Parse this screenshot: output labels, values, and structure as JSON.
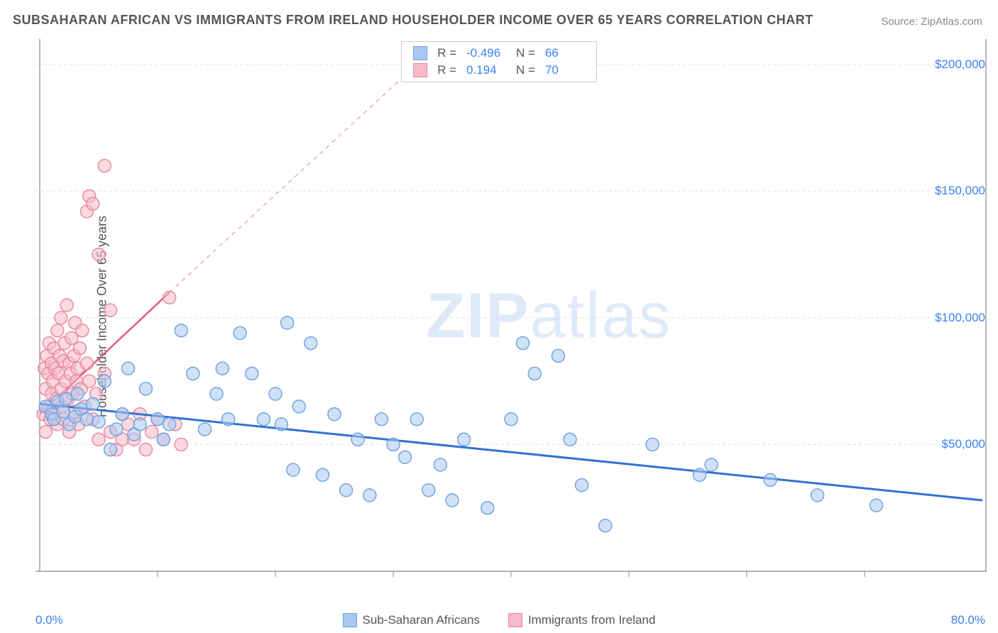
{
  "title": "SUBSAHARAN AFRICAN VS IMMIGRANTS FROM IRELAND HOUSEHOLDER INCOME OVER 65 YEARS CORRELATION CHART",
  "source": "Source: ZipAtlas.com",
  "ylabel": "Householder Income Over 65 years",
  "watermark_bold": "ZIP",
  "watermark_light": "atlas",
  "chart": {
    "type": "scatter",
    "background_color": "#ffffff",
    "grid_color": "#e0e0e0",
    "axis_color": "#888888",
    "xlim": [
      0,
      80
    ],
    "ylim": [
      0,
      210000
    ],
    "x_range_labels": [
      "0.0%",
      "80.0%"
    ],
    "y_ticks": [
      50000,
      100000,
      150000,
      200000
    ],
    "y_tick_labels": [
      "$50,000",
      "$100,000",
      "$150,000",
      "$200,000"
    ],
    "y_tick_color": "#3b82f6",
    "x_minor_ticks": [
      10,
      20,
      30,
      40,
      50,
      60,
      70
    ],
    "marker_radius": 9,
    "marker_stroke_width": 1.5,
    "series": [
      {
        "name": "Sub-Saharan Africans",
        "fill": "#a9c9f0",
        "stroke": "#6fa5e0",
        "fill_opacity": 0.55,
        "trend": {
          "x1": 0,
          "y1": 66000,
          "x2": 80,
          "y2": 28000,
          "stroke": "#2f72d4",
          "width": 3,
          "dash": ""
        },
        "trend_extrap": null,
        "stats": {
          "R_label": "R =",
          "R": "-0.496",
          "N_label": "N =",
          "N": "66"
        },
        "N": 66,
        "points": [
          [
            0.5,
            65000
          ],
          [
            1,
            62000
          ],
          [
            1.2,
            60000
          ],
          [
            1.5,
            67000
          ],
          [
            2,
            63000
          ],
          [
            2.2,
            68000
          ],
          [
            2.5,
            58000
          ],
          [
            3,
            61000
          ],
          [
            3.2,
            70000
          ],
          [
            3.5,
            64000
          ],
          [
            4,
            60000
          ],
          [
            4.5,
            66000
          ],
          [
            5,
            59000
          ],
          [
            5.5,
            75000
          ],
          [
            6,
            48000
          ],
          [
            6.5,
            56000
          ],
          [
            7,
            62000
          ],
          [
            7.5,
            80000
          ],
          [
            8,
            54000
          ],
          [
            8.5,
            58000
          ],
          [
            9,
            72000
          ],
          [
            10,
            60000
          ],
          [
            10.5,
            52000
          ],
          [
            11,
            58000
          ],
          [
            12,
            95000
          ],
          [
            13,
            78000
          ],
          [
            14,
            56000
          ],
          [
            15,
            70000
          ],
          [
            15.5,
            80000
          ],
          [
            16,
            60000
          ],
          [
            17,
            94000
          ],
          [
            18,
            78000
          ],
          [
            19,
            60000
          ],
          [
            20,
            70000
          ],
          [
            20.5,
            58000
          ],
          [
            21,
            98000
          ],
          [
            21.5,
            40000
          ],
          [
            22,
            65000
          ],
          [
            23,
            90000
          ],
          [
            24,
            38000
          ],
          [
            25,
            62000
          ],
          [
            26,
            32000
          ],
          [
            27,
            52000
          ],
          [
            28,
            30000
          ],
          [
            29,
            60000
          ],
          [
            30,
            50000
          ],
          [
            31,
            45000
          ],
          [
            32,
            60000
          ],
          [
            33,
            32000
          ],
          [
            34,
            42000
          ],
          [
            35,
            28000
          ],
          [
            36,
            52000
          ],
          [
            38,
            25000
          ],
          [
            40,
            60000
          ],
          [
            41,
            90000
          ],
          [
            42,
            78000
          ],
          [
            44,
            85000
          ],
          [
            45,
            52000
          ],
          [
            46,
            34000
          ],
          [
            48,
            18000
          ],
          [
            52,
            50000
          ],
          [
            56,
            38000
          ],
          [
            57,
            42000
          ],
          [
            62,
            36000
          ],
          [
            66,
            30000
          ],
          [
            71,
            26000
          ]
        ]
      },
      {
        "name": "Immigrants from Ireland",
        "fill": "#f5b9c8",
        "stroke": "#e98aa2",
        "fill_opacity": 0.55,
        "trend": {
          "x1": 0,
          "y1": 62000,
          "x2": 11,
          "y2": 110000,
          "stroke": "#e05a82",
          "width": 2.5,
          "dash": ""
        },
        "trend_extrap": {
          "x1": 11,
          "y1": 110000,
          "x2": 46,
          "y2": 260000,
          "stroke": "#f0a7bb",
          "width": 1.5,
          "dash": "6 6"
        },
        "stats": {
          "R_label": "R =",
          "R": "0.194",
          "N_label": "N =",
          "N": "70"
        },
        "N": 70,
        "points": [
          [
            0.3,
            62000
          ],
          [
            0.4,
            80000
          ],
          [
            0.5,
            72000
          ],
          [
            0.5,
            55000
          ],
          [
            0.6,
            85000
          ],
          [
            0.7,
            78000
          ],
          [
            0.8,
            65000
          ],
          [
            0.8,
            90000
          ],
          [
            0.9,
            60000
          ],
          [
            1,
            82000
          ],
          [
            1,
            70000
          ],
          [
            1.1,
            75000
          ],
          [
            1.2,
            88000
          ],
          [
            1.2,
            62000
          ],
          [
            1.3,
            80000
          ],
          [
            1.4,
            68000
          ],
          [
            1.5,
            95000
          ],
          [
            1.5,
            58000
          ],
          [
            1.6,
            78000
          ],
          [
            1.7,
            85000
          ],
          [
            1.8,
            72000
          ],
          [
            1.8,
            100000
          ],
          [
            1.9,
            65000
          ],
          [
            2,
            83000
          ],
          [
            2,
            60000
          ],
          [
            2.1,
            90000
          ],
          [
            2.2,
            75000
          ],
          [
            2.3,
            105000
          ],
          [
            2.4,
            68000
          ],
          [
            2.5,
            82000
          ],
          [
            2.5,
            55000
          ],
          [
            2.6,
            78000
          ],
          [
            2.7,
            92000
          ],
          [
            2.8,
            70000
          ],
          [
            2.9,
            85000
          ],
          [
            3,
            63000
          ],
          [
            3,
            98000
          ],
          [
            3.1,
            75000
          ],
          [
            3.2,
            80000
          ],
          [
            3.3,
            58000
          ],
          [
            3.4,
            88000
          ],
          [
            3.5,
            72000
          ],
          [
            3.6,
            95000
          ],
          [
            3.8,
            65000
          ],
          [
            4,
            82000
          ],
          [
            4,
            142000
          ],
          [
            4.2,
            75000
          ],
          [
            4.2,
            148000
          ],
          [
            4.5,
            60000
          ],
          [
            4.5,
            145000
          ],
          [
            4.8,
            70000
          ],
          [
            5,
            52000
          ],
          [
            5,
            125000
          ],
          [
            5.5,
            78000
          ],
          [
            5.5,
            160000
          ],
          [
            6,
            55000
          ],
          [
            6,
            103000
          ],
          [
            6.5,
            48000
          ],
          [
            7,
            62000
          ],
          [
            7,
            52000
          ],
          [
            7.5,
            58000
          ],
          [
            8,
            52000
          ],
          [
            8.5,
            62000
          ],
          [
            9,
            48000
          ],
          [
            9.5,
            55000
          ],
          [
            10,
            60000
          ],
          [
            10.5,
            52000
          ],
          [
            11,
            108000
          ],
          [
            11.5,
            58000
          ],
          [
            12,
            50000
          ]
        ]
      }
    ],
    "legend_bottom": [
      {
        "label": "Sub-Saharan Africans",
        "fill": "#a9c9f0",
        "stroke": "#6fa5e0"
      },
      {
        "label": "Immigrants from Ireland",
        "fill": "#f5b9c8",
        "stroke": "#e98aa2"
      }
    ]
  }
}
